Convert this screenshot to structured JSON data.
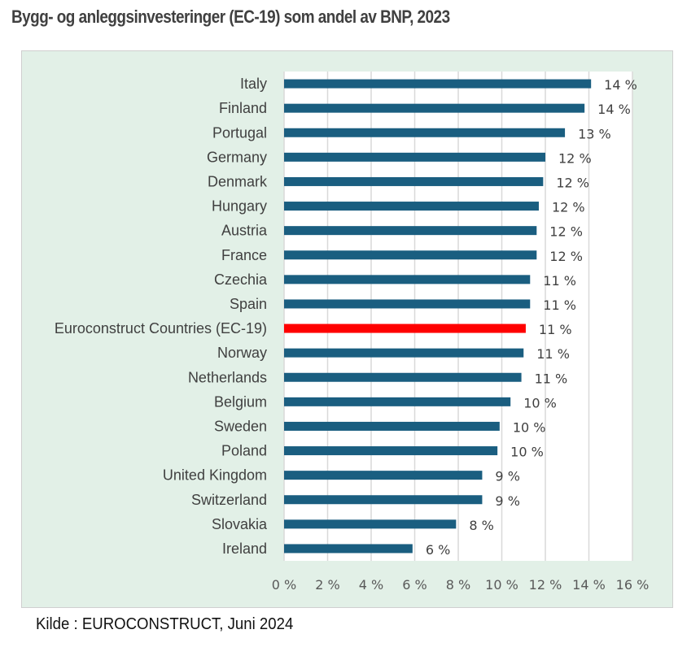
{
  "chart_data": {
    "type": "bar",
    "orientation": "horizontal",
    "title": "Bygg- og anleggsinvesteringer (EC-19) som andel av BNP, 2023",
    "xlabel": "",
    "ylabel": "",
    "xlim": [
      0,
      16
    ],
    "ticks": [
      0,
      2,
      4,
      6,
      8,
      10,
      12,
      14,
      16
    ],
    "tick_labels": [
      "0 %",
      "2 %",
      "4 %",
      "6 %",
      "8 %",
      "10 %",
      "12 %",
      "14 %",
      "16 %"
    ],
    "grid": true,
    "legend": "none",
    "categories": [
      "Italy",
      "Finland",
      "Portugal",
      "Germany",
      "Denmark",
      "Hungary",
      "Austria",
      "France",
      "Czechia",
      "Spain",
      "Euroconstruct Countries (EC-19)",
      "Norway",
      "Netherlands",
      "Belgium",
      "Sweden",
      "Poland",
      "United Kingdom",
      "Switzerland",
      "Slovakia",
      "Ireland"
    ],
    "values": [
      14.1,
      13.8,
      12.9,
      12.0,
      11.9,
      11.7,
      11.6,
      11.6,
      11.3,
      11.3,
      11.1,
      11.0,
      10.9,
      10.4,
      9.9,
      9.8,
      9.1,
      9.1,
      7.9,
      5.9
    ],
    "data_labels": [
      "14 %",
      "14 %",
      "13 %",
      "12 %",
      "12 %",
      "12 %",
      "12 %",
      "12 %",
      "11 %",
      "11 %",
      "11 %",
      "11 %",
      "11 %",
      "10 %",
      "10 %",
      "10 %",
      "9 %",
      "9 %",
      "8 %",
      "6 %"
    ],
    "highlight_category": "Euroconstruct Countries (EC-19)",
    "colors": {
      "bar": "#1a5e80",
      "highlight": "#ff0000",
      "plot_bg": "#ffffff",
      "panel_bg": "#e2f0e7",
      "grid": "#d9d9d9"
    }
  },
  "footer": {
    "source": "Kilde : EUROCONSTRUCT, Juni 2024"
  }
}
